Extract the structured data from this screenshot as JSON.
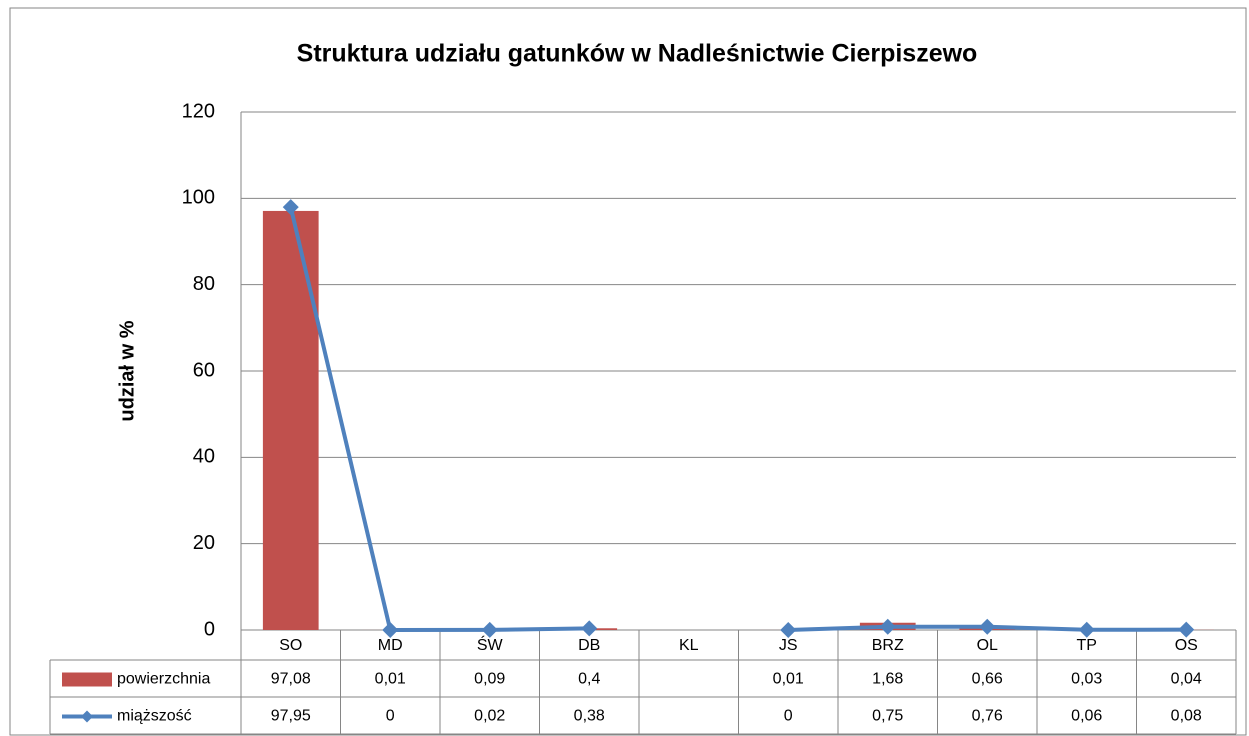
{
  "chart_data": {
    "type": "bar",
    "title": "Struktura udziału gatunków w Nadleśnictwie Cierpiszewo",
    "y_label": "udział w %",
    "categories": [
      "SO",
      "MD",
      "ŚW",
      "DB",
      "KL",
      "JS",
      "BRZ",
      "OL",
      "TP",
      "OS"
    ],
    "series": [
      {
        "name": "powierzchnia",
        "type": "bar",
        "color": "#c0504d",
        "values": [
          97.08,
          0.01,
          0.09,
          0.4,
          null,
          0.01,
          1.68,
          0.66,
          0.03,
          0.04
        ],
        "value_labels": [
          "97,08",
          "0,01",
          "0,09",
          "0,4",
          null,
          "0,01",
          "1,68",
          "0,66",
          "0,03",
          "0,04"
        ]
      },
      {
        "name": "miąższość",
        "type": "line",
        "color": "#4f81bd",
        "values": [
          97.95,
          0,
          0.02,
          0.38,
          null,
          0,
          0.75,
          0.76,
          0.06,
          0.08
        ],
        "value_labels": [
          "97,95",
          "0",
          "0,02",
          "0,38",
          null,
          "0",
          "0,75",
          "0,76",
          "0,06",
          "0,08"
        ]
      }
    ],
    "ylim": [
      0,
      120
    ],
    "yticks": [
      0,
      20,
      40,
      60,
      80,
      100,
      120
    ],
    "grid": true
  }
}
